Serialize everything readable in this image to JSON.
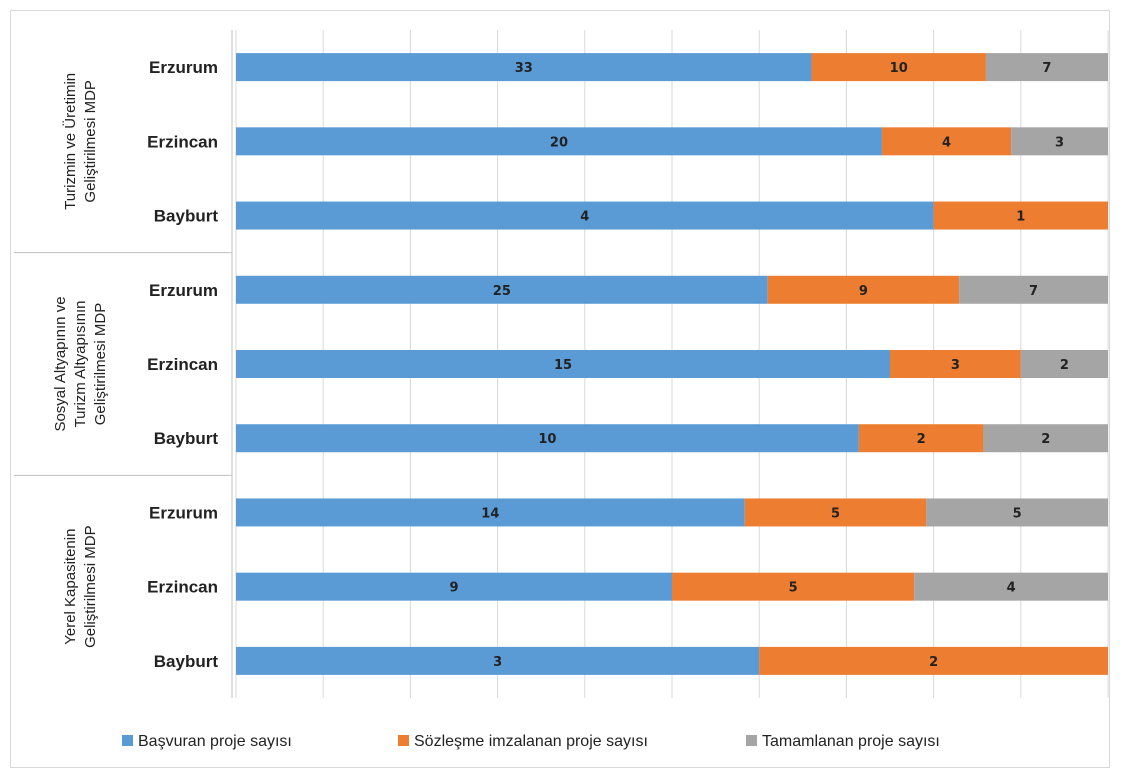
{
  "chart_data": {
    "type": "bar",
    "orientation": "horizontal",
    "stacked": "percent",
    "groups": [
      {
        "label": [
          "Turizmin ve Üretimin",
          "Geliştirilmesi MDP"
        ],
        "categories": [
          "Erzurum",
          "Erzincan",
          "Bayburt"
        ]
      },
      {
        "label": [
          "Sosyal Altyapının ve",
          "Turizm Altyapısının",
          "Geliştirilmesi MDP"
        ],
        "categories": [
          "Erzurum",
          "Erzincan",
          "Bayburt"
        ]
      },
      {
        "label": [
          "Yerel Kapasitenin",
          "Geliştirilmesi MDP"
        ],
        "categories": [
          "Erzurum",
          "Erzincan",
          "Bayburt"
        ]
      }
    ],
    "categories": [
      "Erzurum",
      "Erzincan",
      "Bayburt",
      "Erzurum",
      "Erzincan",
      "Bayburt",
      "Erzurum",
      "Erzincan",
      "Bayburt"
    ],
    "series": [
      {
        "name": "Başvuran proje sayısı",
        "color": "#5b9bd5",
        "values": [
          33,
          20,
          4,
          25,
          15,
          10,
          14,
          9,
          3
        ]
      },
      {
        "name": "Sözleşme imzalanan proje sayısı",
        "color": "#ed7d31",
        "values": [
          10,
          4,
          1,
          9,
          3,
          2,
          5,
          5,
          2
        ]
      },
      {
        "name": "Tamamlanan proje sayısı",
        "color": "#a5a5a5",
        "values": [
          7,
          3,
          0,
          7,
          2,
          2,
          5,
          4,
          0
        ]
      }
    ],
    "grid": true,
    "legend_position": "bottom"
  }
}
